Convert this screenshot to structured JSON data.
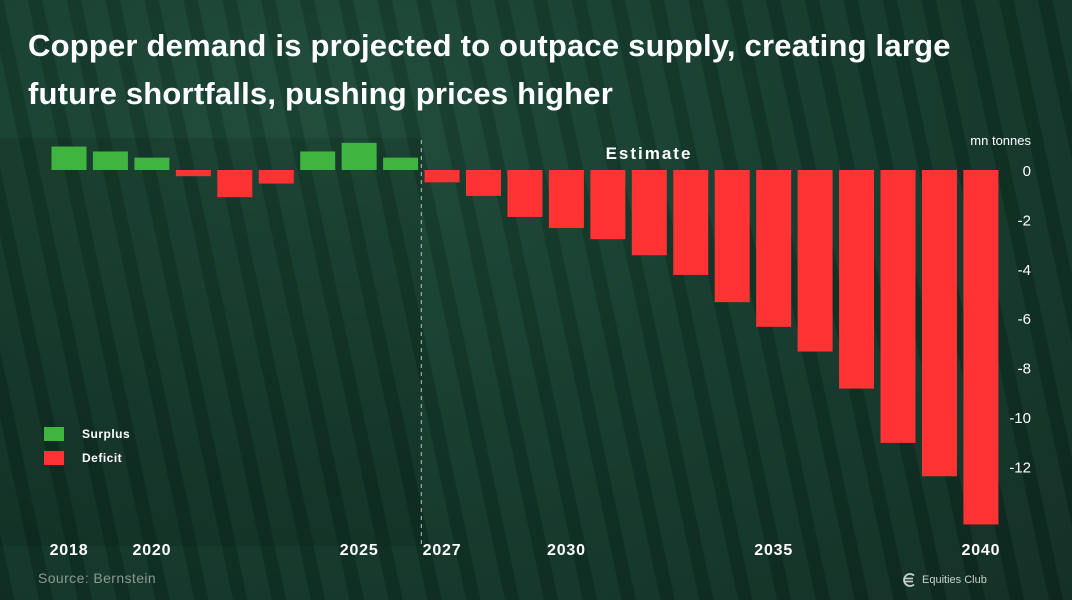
{
  "title": "Copper demand is projected to outpace supply, creating large future shortfalls, pushing prices higher",
  "source": "Source: Bernstein",
  "brand": "Equities Club",
  "colors": {
    "surplus": "#3fb53f",
    "deficit": "#ff3333",
    "background": "#133327"
  },
  "chart_data": {
    "type": "bar",
    "title": "Copper demand is projected to outpace supply, creating large future shortfalls, pushing prices higher",
    "ylabel": "mn tonnes",
    "ylim": [
      -14.2,
      1.3
    ],
    "yticks": [
      0,
      -2,
      -4,
      -6,
      -8,
      -10,
      -12
    ],
    "categories": [
      "2018",
      "2019",
      "2020",
      "2021",
      "2022",
      "2023",
      "2024",
      "2025",
      "2026",
      "2027",
      "2028",
      "2029",
      "2030",
      "2031",
      "2032",
      "2033",
      "2034",
      "2035",
      "2036",
      "2037",
      "2038",
      "2039",
      "2040"
    ],
    "xtick_labels": [
      "2018",
      "2020",
      "2025",
      "2027",
      "2030",
      "2035",
      "2040"
    ],
    "values": [
      0.95,
      0.75,
      0.5,
      -0.25,
      -1.1,
      -0.55,
      0.75,
      1.1,
      0.5,
      -0.5,
      -1.05,
      -1.9,
      -2.35,
      -2.8,
      -3.45,
      -4.25,
      -5.35,
      -6.35,
      -7.35,
      -8.85,
      -11.05,
      -12.4,
      -14.35
    ],
    "estimate_start": "2027",
    "annotations": [
      "Estimate"
    ],
    "legend": [
      {
        "label": "Surplus",
        "color": "#3fb53f"
      },
      {
        "label": "Deficit",
        "color": "#ff3333"
      }
    ]
  }
}
